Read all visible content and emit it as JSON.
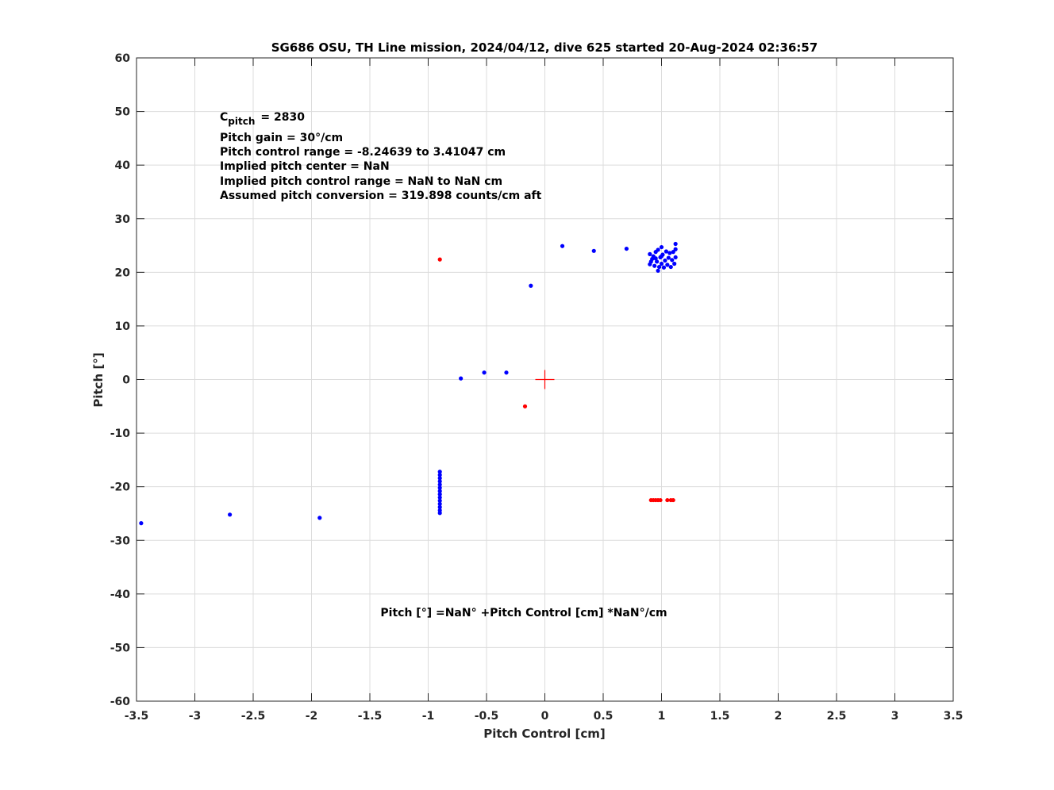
{
  "chart_data": {
    "type": "scatter",
    "title": "SG686 OSU, TH Line mission, 2024/04/12, dive 625 started 20-Aug-2024 02:36:57",
    "x_label": "Pitch Control [cm]",
    "y_label": "Pitch [°]",
    "xlim": [
      -3.5,
      3.5
    ],
    "ylim": [
      -60,
      60
    ],
    "xticks": [
      -3.5,
      -3,
      -2.5,
      -2,
      -1.5,
      -1,
      -0.5,
      0,
      0.5,
      1,
      1.5,
      2,
      2.5,
      3,
      3.5
    ],
    "yticks": [
      -60,
      -50,
      -40,
      -30,
      -20,
      -10,
      0,
      10,
      20,
      30,
      40,
      50,
      60
    ],
    "grid": true,
    "annotations": {
      "first": {
        "symbol": "C",
        "subscript": "pitch",
        "text": "= 2830"
      },
      "lines": [
        "Pitch gain = 30°/cm",
        "Pitch control range = -8.24639 to 3.41047 cm",
        "Implied pitch center = NaN",
        "Implied pitch control range = NaN to NaN cm",
        "Assumed pitch conversion = 319.898 counts/cm aft"
      ]
    },
    "equation": "Pitch [°] =NaN° +Pitch Control [cm] *NaN°/cm",
    "series": [
      {
        "color": "#0000ff",
        "marker": "dot",
        "x": [
          -3.46,
          -2.7,
          -1.93,
          -0.72,
          -0.52,
          -0.33,
          -0.12,
          0.15,
          0.42,
          0.7,
          -0.9,
          -0.9,
          -0.9,
          -0.9,
          -0.9,
          -0.9,
          -0.9,
          -0.9,
          -0.9,
          -0.9,
          -0.9,
          -0.9,
          -0.9,
          -0.9,
          0.9,
          0.9,
          0.92,
          0.93,
          0.94,
          0.95,
          0.96,
          0.97,
          0.97,
          0.98,
          0.99,
          1.0,
          1.0,
          1.01,
          1.02,
          1.03,
          1.04,
          1.05,
          1.06,
          1.07,
          1.08,
          1.09,
          1.1,
          1.11,
          1.12,
          1.12,
          1.12,
          0.91,
          0.95,
          1.0
        ],
        "y": [
          -26.8,
          -25.2,
          -25.8,
          0.2,
          1.3,
          1.3,
          17.5,
          24.9,
          24.0,
          24.4,
          -17.2,
          -17.8,
          -18.4,
          -19,
          -19.6,
          -20.2,
          -20.8,
          -21.4,
          -22,
          -22.6,
          -23.2,
          -23.8,
          -24.4,
          -24.9,
          23.4,
          21.5,
          22.5,
          23.0,
          21.2,
          23.8,
          22.0,
          20.3,
          24.2,
          21.0,
          22.8,
          24.7,
          21.6,
          23.3,
          20.9,
          22.2,
          23.9,
          21.4,
          22.7,
          23.6,
          21.0,
          22.3,
          23.8,
          21.6,
          22.8,
          25.3,
          24.3,
          22.0,
          22.6,
          23.0
        ]
      },
      {
        "color": "#ff0000",
        "marker": "dot",
        "x": [
          -0.9,
          -0.17,
          0.91,
          0.93,
          0.95,
          0.97,
          0.99,
          1.05,
          1.08,
          1.1
        ],
        "y": [
          22.4,
          -5.0,
          -22.5,
          -22.5,
          -22.5,
          -22.5,
          -22.5,
          -22.5,
          -22.5,
          -22.5
        ]
      },
      {
        "color": "#ff0000",
        "marker": "plus",
        "x": [
          0
        ],
        "y": [
          0
        ]
      }
    ]
  }
}
